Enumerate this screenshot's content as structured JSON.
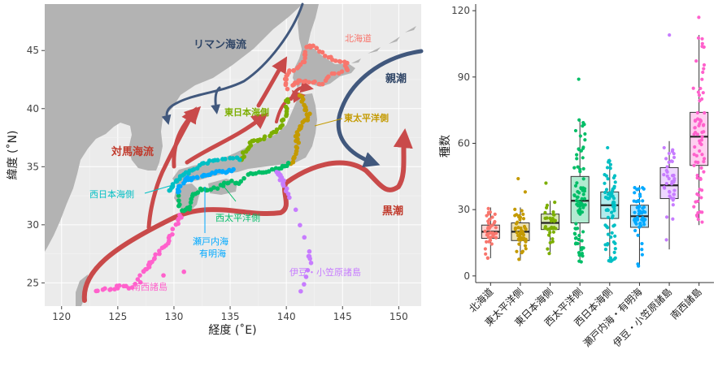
{
  "chart_data": [
    {
      "type": "map",
      "xlabel": "経度 (˚E)",
      "ylabel": "緯度 (˚N)",
      "xlim": [
        118.5,
        152
      ],
      "ylim": [
        23,
        49
      ],
      "x_ticks": [
        120,
        125,
        130,
        135,
        140,
        145,
        150
      ],
      "y_ticks": [
        25,
        30,
        35,
        40,
        45
      ],
      "x_tick_labels": [
        "120",
        "125",
        "130",
        "135",
        "140",
        "145",
        "150"
      ],
      "y_tick_labels": [
        "25",
        "30",
        "35",
        "40",
        "45"
      ],
      "grid": true,
      "background": "#ebebeb",
      "land_color": "#b3b3b3",
      "currents": [
        {
          "name": "リマン海流",
          "kind": "cold",
          "color": "#41587d"
        },
        {
          "name": "親潮",
          "kind": "cold",
          "color": "#41587d"
        },
        {
          "name": "対馬海流",
          "kind": "warm",
          "color": "#c94a4a"
        },
        {
          "name": "黒潮",
          "kind": "warm",
          "color": "#c94a4a"
        }
      ],
      "regions": [
        {
          "name": "北海道",
          "color": "#f8766d",
          "lat": [
            41.8,
            45.4
          ],
          "lon": [
            139.8,
            145.5
          ]
        },
        {
          "name": "東太平洋側",
          "color": "#c49a00",
          "lat": [
            35.0,
            41.3
          ],
          "lon": [
            140.6,
            142.0
          ]
        },
        {
          "name": "東日本海側",
          "color": "#7cae00",
          "lat": [
            35.6,
            41.2
          ],
          "lon": [
            135.8,
            140.1
          ]
        },
        {
          "name": "西太平洋側",
          "color": "#00be67",
          "lat": [
            32.7,
            35.6
          ],
          "lon": [
            130.6,
            140.3
          ]
        },
        {
          "name": "西日本海側",
          "color": "#00bfc4",
          "lat": [
            33.4,
            35.7
          ],
          "lon": [
            129.6,
            135.8
          ]
        },
        {
          "name": "瀬戸内海・有明海",
          "color": "#00a9ff",
          "lat": [
            32.9,
            34.8
          ],
          "lon": [
            130.2,
            135.3
          ]
        },
        {
          "name": "伊豆・小笠原諸島",
          "color": "#c77cff",
          "lat": [
            24.2,
            34.6
          ],
          "lon": [
            139.1,
            142.2
          ]
        },
        {
          "name": "南西諸島",
          "color": "#ff61cc",
          "lat": [
            24.3,
            30.8
          ],
          "lon": [
            122.9,
            131.1
          ]
        }
      ],
      "labels": {
        "liman": "リマン海流",
        "oyashio": "親潮",
        "tsushima": "対馬海流",
        "kuroshio": "黒潮",
        "hokkaido": "北海道",
        "east_nihonkai": "東日本海側",
        "east_pacific": "東太平洋側",
        "west_nihonkai": "西日本海側",
        "west_pacific": "西太平洋側",
        "setouchi": "瀬戸内海",
        "ariake": "有明海",
        "izu": "伊豆・小笠原諸島",
        "nansei": "南西諸島"
      }
    },
    {
      "type": "box",
      "ylabel": "種数",
      "ylim": [
        -3,
        123
      ],
      "y_ticks": [
        0,
        30,
        60,
        90,
        120
      ],
      "y_tick_labels": [
        "0",
        "30",
        "60",
        "90",
        "120"
      ],
      "categories": [
        "北海道",
        "東太平洋側",
        "東日本海側",
        "西太平洋側",
        "西日本海側",
        "瀬戸内海・有明海",
        "伊豆・小笠原諸島",
        "南西諸島"
      ],
      "colors": [
        "#f8766d",
        "#c49a00",
        "#7cae00",
        "#00be67",
        "#00bfc4",
        "#00a9ff",
        "#c77cff",
        "#ff61cc"
      ],
      "boxes": [
        {
          "min": 8,
          "q1": 17,
          "median": 20,
          "q3": 23,
          "max": 31,
          "n": 45
        },
        {
          "min": 7,
          "q1": 16,
          "median": 20,
          "q3": 24,
          "max": 31,
          "outliers": [
            38,
            44
          ],
          "n": 45
        },
        {
          "min": 10,
          "q1": 21,
          "median": 24,
          "q3": 28,
          "max": 34,
          "outliers": [
            42
          ],
          "n": 30
        },
        {
          "min": 6,
          "q1": 24,
          "median": 34,
          "q3": 45,
          "max": 71,
          "outliers": [
            89
          ],
          "n": 85
        },
        {
          "min": 6,
          "q1": 26,
          "median": 32,
          "q3": 38,
          "max": 53,
          "outliers": [
            58
          ],
          "n": 70
        },
        {
          "min": 4,
          "q1": 22,
          "median": 27,
          "q3": 32,
          "max": 41,
          "n": 55
        },
        {
          "min": 12,
          "q1": 35,
          "median": 41,
          "q3": 49,
          "max": 61,
          "outliers": [
            109
          ],
          "n": 40
        },
        {
          "min": 23,
          "q1": 50,
          "median": 63,
          "q3": 74,
          "max": 109,
          "outliers": [
            117
          ],
          "n": 75
        }
      ]
    }
  ]
}
